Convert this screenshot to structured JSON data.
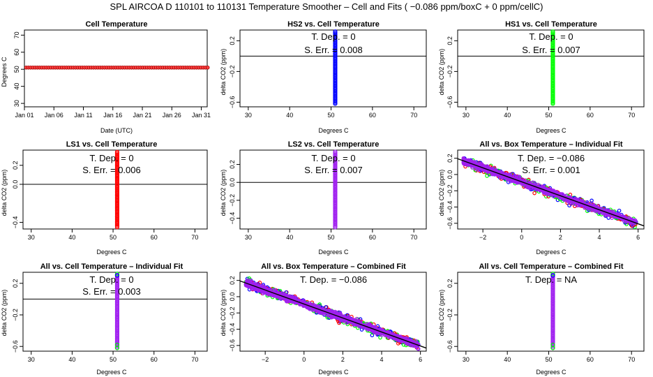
{
  "title": "SPL   AIRCOA D   110101 to 110131   Temperature Smoother – Cell and Fits ( −0.086  ppm/boxC +  0  ppm/cellC)",
  "colors": {
    "red": "#ff0000",
    "blue": "#0000ff",
    "green": "#00ff00",
    "purple": "#a020f0",
    "fill_red": "#ff0000",
    "cellfill": "#ff4040"
  },
  "chart_data": [
    {
      "id": "p1",
      "type": "scatter",
      "title": "Cell Temperature",
      "xlabel": "Date (UTC)",
      "ylabel": "Degrees C",
      "x_ticks": [
        "Jan 01",
        "Jan 06",
        "Jan 11",
        "Jan 16",
        "Jan 21",
        "Jan 26",
        "Jan 31"
      ],
      "y_ticks": [
        "30",
        "40",
        "50",
        "60",
        "70"
      ],
      "xlim": [
        0,
        31
      ],
      "ylim": [
        28,
        73
      ],
      "series_value": 51,
      "color": "red"
    },
    {
      "id": "p2",
      "type": "scatter",
      "title": "HS2 vs. Cell Temperature",
      "xlabel": "Degrees C",
      "ylabel": "delta CO2 (ppm)",
      "x_ticks": [
        "30",
        "40",
        "50",
        "60",
        "70"
      ],
      "y_ticks": [
        "−0.6",
        "−0.2",
        "0.2"
      ],
      "xlim": [
        28,
        73
      ],
      "ylim": [
        -0.66,
        0.34
      ],
      "x_value": 51,
      "y_range": [
        -0.62,
        0.32
      ],
      "color": "blue",
      "hline": 0,
      "stat1": "T. Dep.  =  0",
      "stat2": "S. Err.  =  0.008"
    },
    {
      "id": "p3",
      "type": "scatter",
      "title": "HS1 vs. Cell Temperature",
      "xlabel": "Degrees C",
      "ylabel": "delta CO2 (ppm)",
      "x_ticks": [
        "30",
        "40",
        "50",
        "60",
        "70"
      ],
      "y_ticks": [
        "−0.6",
        "−0.2",
        "0.2"
      ],
      "xlim": [
        28,
        73
      ],
      "ylim": [
        -0.66,
        0.34
      ],
      "x_value": 51,
      "y_range": [
        -0.62,
        0.32
      ],
      "color": "green",
      "hline": 0,
      "stat1": "T. Dep.  =  0",
      "stat2": "S. Err.  =  0.007"
    },
    {
      "id": "p4",
      "type": "scatter",
      "title": "LS1 vs. Cell Temperature",
      "xlabel": "Degrees C",
      "ylabel": "delta CO2 (ppm)",
      "x_ticks": [
        "30",
        "40",
        "50",
        "60",
        "70"
      ],
      "y_ticks": [
        "−0.4",
        "0.0",
        "0.2"
      ],
      "xlim": [
        28,
        73
      ],
      "ylim": [
        -0.47,
        0.36
      ],
      "x_value": 51,
      "y_range": [
        -0.45,
        0.34
      ],
      "color": "red",
      "hline": 0,
      "stat1": "T. Dep.  =  0",
      "stat2": "S. Err.  =  0.006"
    },
    {
      "id": "p5",
      "type": "scatter",
      "title": "LS2 vs. Cell Temperature",
      "xlabel": "Degrees C",
      "ylabel": "delta CO2 (ppm)",
      "x_ticks": [
        "30",
        "40",
        "50",
        "60",
        "70"
      ],
      "y_ticks": [
        "−0.4",
        "−0.2",
        "0.0",
        "0.2"
      ],
      "xlim": [
        28,
        73
      ],
      "ylim": [
        -0.52,
        0.36
      ],
      "x_value": 51,
      "y_range": [
        -0.5,
        0.34
      ],
      "color": "purple",
      "hline": 0,
      "stat1": "T. Dep.  =  0",
      "stat2": "S. Err.  =  0.007"
    },
    {
      "id": "p6",
      "type": "scatter",
      "title": "All vs. Box Temperature – Individual Fit",
      "xlabel": "Degrees C",
      "ylabel": "delta CO2 (ppm)",
      "x_ticks": [
        "−2",
        "0",
        "2",
        "4",
        "6"
      ],
      "y_ticks": [
        "−0.6",
        "−0.4",
        "−0.2",
        "0.0",
        "0.2"
      ],
      "xlim": [
        -3.3,
        6.3
      ],
      "ylim": [
        -0.67,
        0.3
      ],
      "slope": -0.086,
      "fit_at_x0": -0.09,
      "x_range": [
        -3.0,
        5.9
      ],
      "stat1": "T. Dep.  =  −0.086",
      "stat2": "S. Err.  =  0.001"
    },
    {
      "id": "p7",
      "type": "scatter",
      "title": "All vs. Cell Temperature – Individual Fit",
      "xlabel": "Degrees C",
      "ylabel": "delta CO2 (ppm)",
      "x_ticks": [
        "30",
        "40",
        "50",
        "60",
        "70"
      ],
      "y_ticks": [
        "−0.6",
        "−0.2",
        "0.2"
      ],
      "xlim": [
        28,
        73
      ],
      "ylim": [
        -0.66,
        0.34
      ],
      "x_value": 51,
      "y_range": [
        -0.62,
        0.32
      ],
      "color": "purple",
      "hline": 0,
      "stat1": "T. Dep.  =  0",
      "stat2": "S. Err.  =  0.003"
    },
    {
      "id": "p8",
      "type": "scatter",
      "title": "All vs. Box Temperature – Combined Fit",
      "xlabel": "Degrees C",
      "ylabel": "delta CO2 (ppm)",
      "x_ticks": [
        "−2",
        "0",
        "2",
        "4",
        "6"
      ],
      "y_ticks": [
        "−0.6",
        "−0.4",
        "−0.2",
        "0.0",
        "0.2"
      ],
      "xlim": [
        -3.3,
        6.3
      ],
      "ylim": [
        -0.67,
        0.3
      ],
      "slope": -0.086,
      "fit_at_x0": -0.09,
      "x_range": [
        -3.0,
        5.9
      ],
      "stat1": "T. Dep.  =  −0.086"
    },
    {
      "id": "p9",
      "type": "scatter",
      "title": "All vs. Cell Temperature – Combined Fit",
      "xlabel": "Degrees C",
      "ylabel": "delta CO2 (ppm)",
      "x_ticks": [
        "30",
        "40",
        "50",
        "60",
        "70"
      ],
      "y_ticks": [
        "−0.6",
        "−0.2",
        "0.2"
      ],
      "xlim": [
        28,
        73
      ],
      "ylim": [
        -0.66,
        0.34
      ],
      "x_value": 51,
      "y_range": [
        -0.62,
        0.32
      ],
      "color": "purple",
      "stat1": "T. Dep.  =  NA"
    }
  ]
}
